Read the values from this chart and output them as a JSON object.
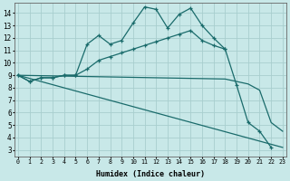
{
  "xlabel": "Humidex (Indice chaleur)",
  "bg_color": "#c8e8e8",
  "grid_color": "#a8cece",
  "line_color": "#1a6b6b",
  "line1_x": [
    0,
    1,
    2,
    3,
    4,
    5,
    6,
    7,
    8,
    9,
    10,
    11,
    12,
    13,
    14,
    15,
    16,
    17,
    18,
    19,
    20,
    21,
    22,
    23
  ],
  "line1_y": [
    9.0,
    8.5,
    8.8,
    8.8,
    9.0,
    9.0,
    11.5,
    12.2,
    11.5,
    11.8,
    13.2,
    14.5,
    14.3,
    12.8,
    13.9,
    14.4,
    13.0,
    12.0,
    11.1,
    8.2,
    5.2,
    4.5,
    3.2,
    null
  ],
  "line2_x": [
    0,
    1,
    2,
    3,
    4,
    5,
    6,
    7,
    8,
    9,
    10,
    11,
    12,
    13,
    14,
    15,
    16,
    17,
    18
  ],
  "line2_y": [
    9.0,
    8.5,
    8.8,
    8.8,
    9.0,
    9.0,
    9.5,
    10.2,
    10.5,
    10.8,
    11.1,
    11.4,
    11.7,
    12.0,
    12.3,
    12.6,
    11.8,
    11.4,
    11.1
  ],
  "line3_x": [
    0,
    23
  ],
  "line3_y": [
    9.0,
    3.2
  ],
  "line4_x": [
    0,
    18,
    19,
    20,
    21,
    22,
    23
  ],
  "line4_y": [
    9.0,
    8.7,
    8.5,
    8.3,
    7.8,
    5.2,
    4.5
  ],
  "xlim": [
    -0.3,
    23.3
  ],
  "ylim": [
    2.5,
    14.8
  ],
  "yticks": [
    3,
    4,
    5,
    6,
    7,
    8,
    9,
    10,
    11,
    12,
    13,
    14
  ],
  "xticks": [
    0,
    1,
    2,
    3,
    4,
    5,
    6,
    7,
    8,
    9,
    10,
    11,
    12,
    13,
    14,
    15,
    16,
    17,
    18,
    19,
    20,
    21,
    22,
    23
  ]
}
